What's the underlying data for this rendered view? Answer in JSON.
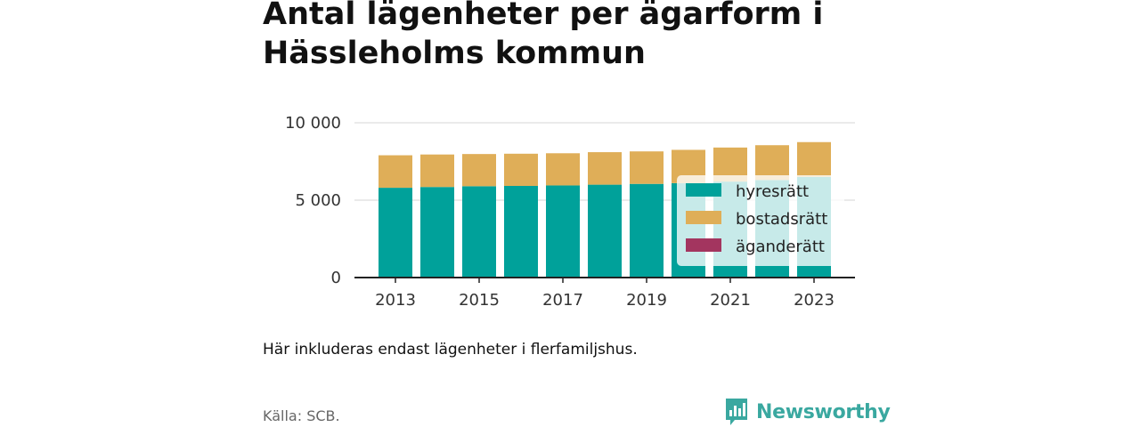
{
  "title": "Antal lägenheter per ägarform i Hässleholms kommun",
  "note": "Här inkluderas endast lägenheter i flerfamiljshus.",
  "source": "Källa: SCB.",
  "brand": {
    "name": "Newsworthy",
    "icon": "newsworthy-logo-icon",
    "color": "#3aa8a0"
  },
  "colors": {
    "hyresratt": "#00a19a",
    "bostadsratt": "#dfae58",
    "aganderatt": "#a3355f",
    "grid": "#dddddd",
    "axis": "#222222"
  },
  "chart_data": {
    "type": "bar",
    "stacked": true,
    "categories": [
      "2013",
      "2014",
      "2015",
      "2016",
      "2017",
      "2018",
      "2019",
      "2020",
      "2021",
      "2022",
      "2023"
    ],
    "x_tick_labels": [
      "2013",
      "2015",
      "2017",
      "2019",
      "2021",
      "2023"
    ],
    "series": [
      {
        "name": "hyresrätt",
        "color": "#00a19a",
        "values": [
          5800,
          5850,
          5900,
          5920,
          5950,
          6000,
          6050,
          6100,
          6200,
          6300,
          6500
        ]
      },
      {
        "name": "bostadsrätt",
        "color": "#dfae58",
        "values": [
          2100,
          2100,
          2080,
          2080,
          2080,
          2100,
          2100,
          2150,
          2200,
          2250,
          2250
        ]
      },
      {
        "name": "äganderätt",
        "color": "#a3355f",
        "values": [
          0,
          0,
          0,
          0,
          0,
          0,
          0,
          0,
          0,
          0,
          0
        ]
      }
    ],
    "y_ticks": [
      0,
      5000,
      10000
    ],
    "y_tick_labels": [
      "0",
      "5 000",
      "10 000"
    ],
    "ylim": [
      0,
      10000
    ],
    "grid": true,
    "legend_position": "right, over bars"
  }
}
